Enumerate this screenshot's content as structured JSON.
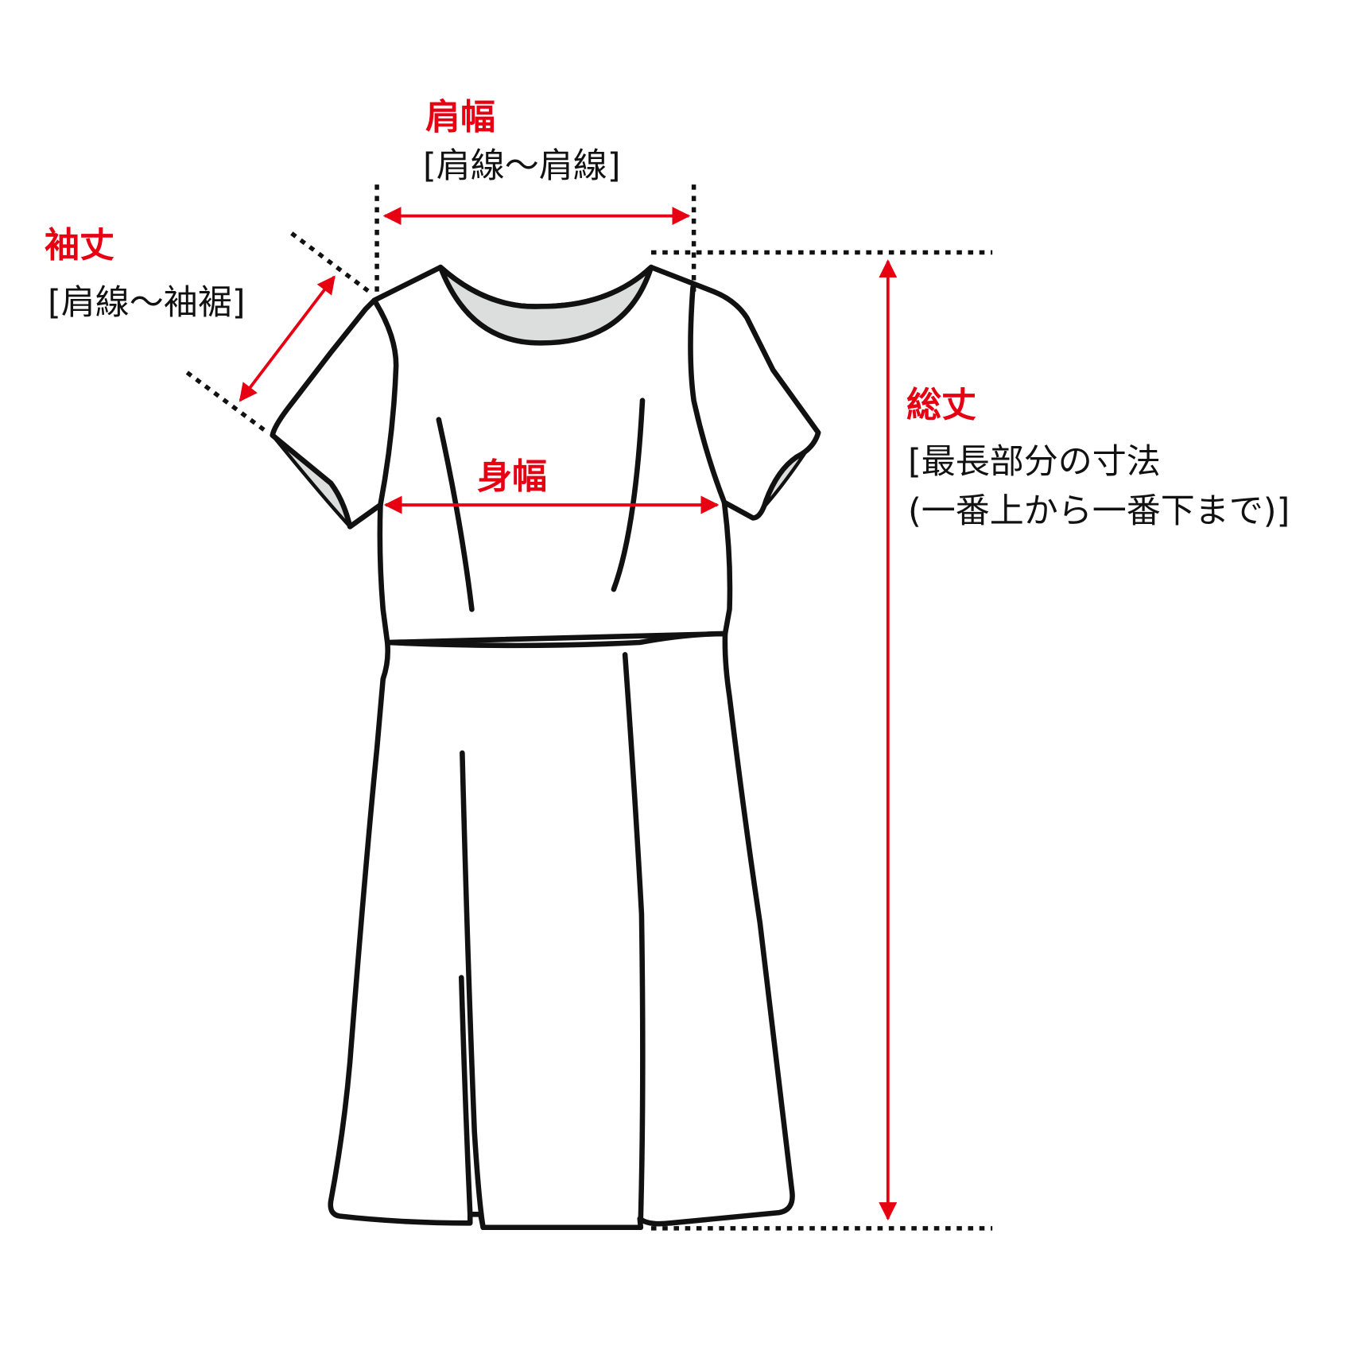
{
  "colors": {
    "accent": "#e60012",
    "outline": "#111111",
    "lining": "#dcdddd"
  },
  "measurements": {
    "shoulder_width": {
      "title": "肩幅",
      "note": "[肩線〜肩線]"
    },
    "sleeve_length": {
      "title": "袖丈",
      "note": "[肩線〜袖裾]"
    },
    "body_width": {
      "title": "身幅"
    },
    "total_length": {
      "title": "総丈",
      "note_line1": "[最長部分の寸法",
      "note_line2": "(一番上から一番下まで)]"
    }
  }
}
